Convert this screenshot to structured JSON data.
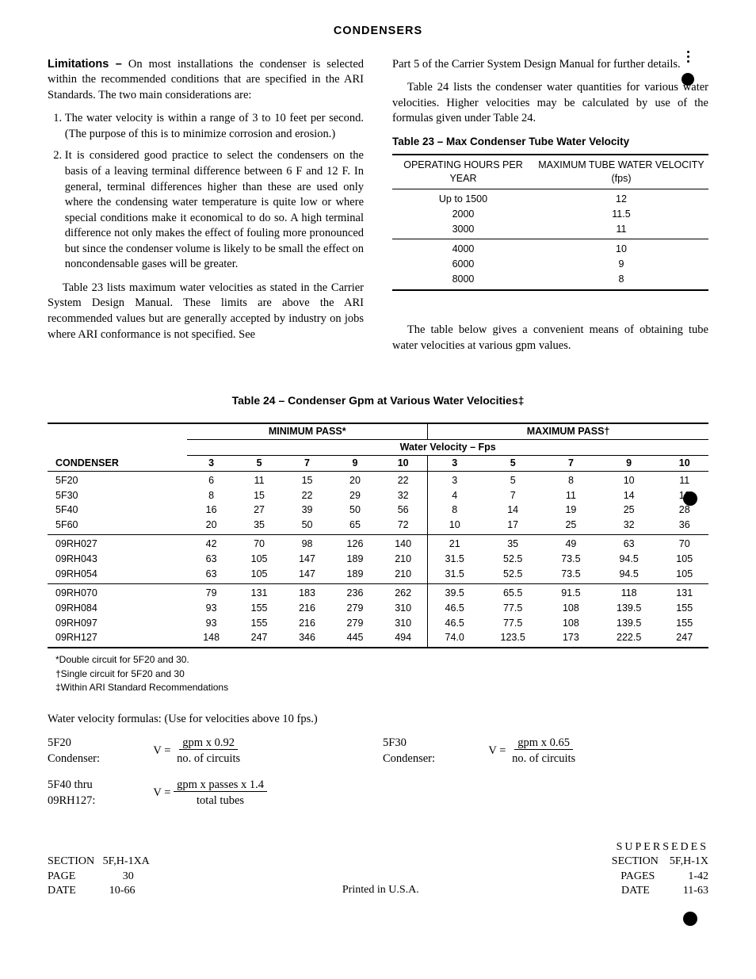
{
  "title": "CONDENSERS",
  "leftCol": {
    "lead": "Limitations –",
    "intro": " On most installations the condenser is selected within the recommended conditions that are specified in the ARI Standards. The two main considerations are:",
    "list": [
      "The water velocity is within a range of 3 to 10 feet per second. (The purpose of this is to minimize corrosion and erosion.)",
      "It is considered good practice to select the condensers on the basis of a leaving terminal difference between 6 F and 12 F. In general, terminal differences higher than these are used only where the condensing water temperature is quite low or where special conditions make it economical to do so. A high terminal difference not only makes the effect of fouling more pronounced but since the condenser volume is likely to be small the effect on noncondensable gases will be greater."
    ],
    "after": "Table 23 lists maximum water velocities as stated in the Carrier System Design Manual. These limits are above the ARI recommended values but are generally accepted by industry on jobs where ARI conformance is not specified. See"
  },
  "rightCol": {
    "p1": "Part 5 of the Carrier System Design Manual for further details.",
    "p2": "Table 24 lists the condenser water quantities for various water velocities. Higher velocities may be calculated by use of the formulas given under Table 24.",
    "t23cap": "Table 23 – Max Condenser Tube Water Velocity",
    "t23": {
      "h1": "OPERATING HOURS PER YEAR",
      "h2": "MAXIMUM TUBE WATER VELOCITY (fps)",
      "rows": [
        [
          "Up to 1500",
          "12"
        ],
        [
          "2000",
          "11.5"
        ],
        [
          "3000",
          "11"
        ],
        [
          "4000",
          "10"
        ],
        [
          "6000",
          "9"
        ],
        [
          "8000",
          "8"
        ]
      ]
    },
    "p3": "The table below gives a convenient means of obtaining tube water velocities at various gpm values."
  },
  "t24": {
    "cap": "Table 24  – Condenser Gpm at Various Water Velocities‡",
    "h_cond": "CONDENSER",
    "h_min": "MINIMUM PASS*",
    "h_max": "MAXIMUM PASS†",
    "h_vel": "Water Velocity – Fps",
    "vels": [
      "3",
      "5",
      "7",
      "9",
      "10",
      "3",
      "5",
      "7",
      "9",
      "10"
    ],
    "rows": [
      [
        "5F20",
        "6",
        "11",
        "15",
        "20",
        "22",
        "3",
        "5",
        "8",
        "10",
        "11"
      ],
      [
        "5F30",
        "8",
        "15",
        "22",
        "29",
        "32",
        "4",
        "7",
        "11",
        "14",
        "16"
      ],
      [
        "5F40",
        "16",
        "27",
        "39",
        "50",
        "56",
        "8",
        "14",
        "19",
        "25",
        "28"
      ],
      [
        "5F60",
        "20",
        "35",
        "50",
        "65",
        "72",
        "10",
        "17",
        "25",
        "32",
        "36"
      ],
      [
        "09RH027",
        "42",
        "70",
        "98",
        "126",
        "140",
        "21",
        "35",
        "49",
        "63",
        "70"
      ],
      [
        "09RH043",
        "63",
        "105",
        "147",
        "189",
        "210",
        "31.5",
        "52.5",
        "73.5",
        "94.5",
        "105"
      ],
      [
        "09RH054",
        "63",
        "105",
        "147",
        "189",
        "210",
        "31.5",
        "52.5",
        "73.5",
        "94.5",
        "105"
      ],
      [
        "09RH070",
        "79",
        "131",
        "183",
        "236",
        "262",
        "39.5",
        "65.5",
        "91.5",
        "118",
        "131"
      ],
      [
        "09RH084",
        "93",
        "155",
        "216",
        "279",
        "310",
        "46.5",
        "77.5",
        "108",
        "139.5",
        "155"
      ],
      [
        "09RH097",
        "93",
        "155",
        "216",
        "279",
        "310",
        "46.5",
        "77.5",
        "108",
        "139.5",
        "155"
      ],
      [
        "09RH127",
        "148",
        "247",
        "346",
        "445",
        "494",
        "74.0",
        "123.5",
        "173",
        "222.5",
        "247"
      ]
    ],
    "notes": [
      "*Double circuit for 5F20 and 30.",
      "†Single circuit for 5F20 and 30",
      "‡Within ARI Standard Recommendations"
    ]
  },
  "formulas": {
    "intro": "Water velocity formulas: (Use for velocities above 10 fps.)",
    "f1_label_a": "5F20",
    "f1_label_b": "Condenser:",
    "f1_top": "gpm x 0.92",
    "f1_bot": "no. of circuits",
    "f2_label_a": "5F30",
    "f2_label_b": "Condenser:",
    "f2_top": "gpm x 0.65",
    "f2_bot": "no. of circuits",
    "f3_label_a": "5F40 thru",
    "f3_label_b": "09RH127:",
    "f3_top": "gpm x passes x 1.4",
    "f3_bot": "total tubes",
    "veq": "V  ="
  },
  "footer": {
    "left": {
      "section_l": "SECTION",
      "section_v": "5F,H-1XA",
      "page_l": "PAGE",
      "page_v": "30",
      "date_l": "DATE",
      "date_v": "10-66"
    },
    "center": "Printed in U.S.A.",
    "right": {
      "sup": "SUPERSEDES",
      "section_l": "SECTION",
      "section_v": "5F,H-1X",
      "pages_l": "PAGES",
      "pages_v": "1-42",
      "date_l": "DATE",
      "date_v": "11-63"
    }
  }
}
